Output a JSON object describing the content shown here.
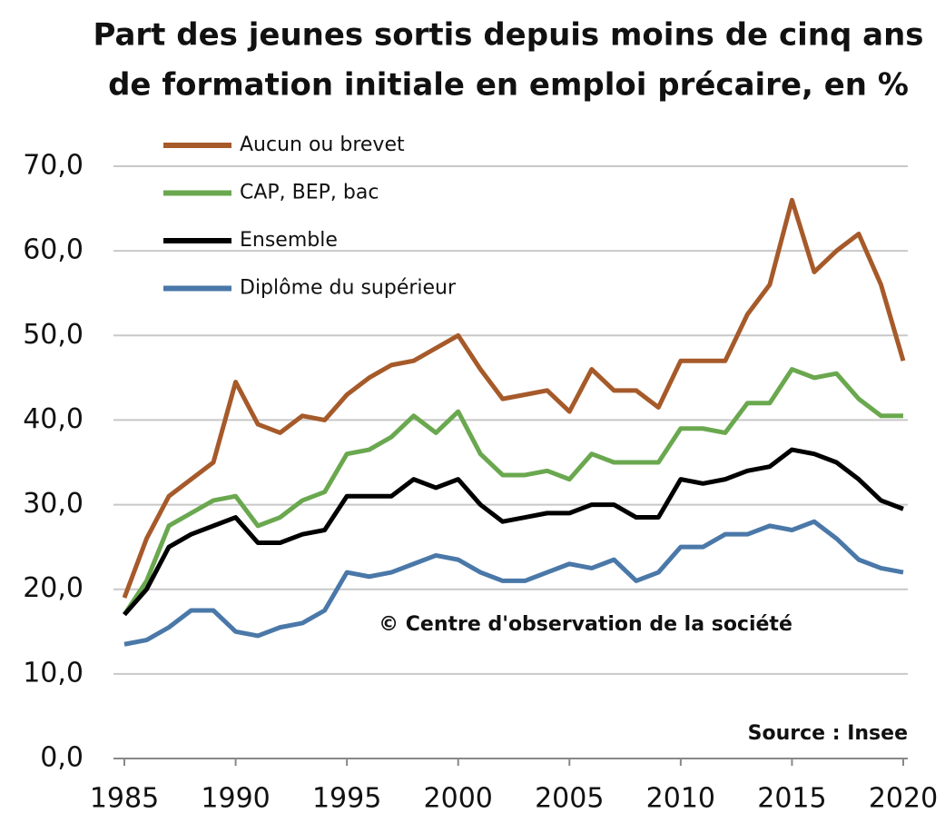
{
  "chart_data": {
    "type": "line",
    "title": [
      "Part des jeunes sortis depuis moins de cinq ans",
      "de formation initiale en emploi précaire, en %"
    ],
    "annotations": [
      "© Centre d'observation de la société",
      "Source : Insee"
    ],
    "x": [
      1985,
      1986,
      1987,
      1988,
      1989,
      1990,
      1991,
      1992,
      1993,
      1994,
      1995,
      1996,
      1997,
      1998,
      1999,
      2000,
      2001,
      2002,
      2003,
      2004,
      2005,
      2006,
      2007,
      2008,
      2009,
      2010,
      2011,
      2012,
      2013,
      2014,
      2015,
      2016,
      2017,
      2018,
      2019,
      2020
    ],
    "xlim": [
      1985,
      2020
    ],
    "xticks": [
      1985,
      1990,
      1995,
      2000,
      2005,
      2010,
      2015,
      2020
    ],
    "ylim": [
      0,
      70
    ],
    "yticks": [
      {
        "value": 0,
        "label": "0,0"
      },
      {
        "value": 10,
        "label": "10,0"
      },
      {
        "value": 20,
        "label": "20,0"
      },
      {
        "value": 30,
        "label": "30,0"
      },
      {
        "value": 40,
        "label": "40,0"
      },
      {
        "value": 50,
        "label": "50,0"
      },
      {
        "value": 60,
        "label": "60,0"
      },
      {
        "value": 70,
        "label": "70,0"
      }
    ],
    "grid": true,
    "legend": "top-left",
    "series": [
      {
        "name": "Aucun ou brevet",
        "color": "#a65a2a",
        "values": [
          19,
          26,
          31,
          33,
          35,
          44.5,
          39.5,
          38.5,
          40.5,
          40,
          43,
          45,
          46.5,
          47,
          48.5,
          50,
          46,
          42.5,
          43,
          43.5,
          41,
          46,
          43.5,
          43.5,
          41.5,
          47,
          47,
          47,
          52.5,
          56,
          66,
          57.5,
          60,
          62,
          56,
          47
        ]
      },
      {
        "name": "CAP, BEP, bac",
        "color": "#6aa84f",
        "values": [
          17,
          21,
          27.5,
          29,
          30.5,
          31,
          27.5,
          28.5,
          30.5,
          31.5,
          36,
          36.5,
          38,
          40.5,
          38.5,
          41,
          36,
          33.5,
          33.5,
          34,
          33,
          36,
          35,
          35,
          35,
          39,
          39,
          38.5,
          42,
          42,
          46,
          45,
          45.5,
          42.5,
          40.5,
          40.5
        ]
      },
      {
        "name": "Ensemble",
        "color": "#000000",
        "values": [
          17,
          20,
          25,
          26.5,
          27.5,
          28.5,
          25.5,
          25.5,
          26.5,
          27,
          31,
          31,
          31,
          33,
          32,
          33,
          30,
          28,
          28.5,
          29,
          29,
          30,
          30,
          28.5,
          28.5,
          33,
          32.5,
          33,
          34,
          34.5,
          36.5,
          36,
          35,
          33,
          30.5,
          29.5
        ]
      },
      {
        "name": "Diplôme du supérieur",
        "color": "#4a78a8",
        "values": [
          13.5,
          14,
          15.5,
          17.5,
          17.5,
          15,
          14.5,
          15.5,
          16,
          17.5,
          22,
          21.5,
          22,
          23,
          24,
          23.5,
          22,
          21,
          21,
          22,
          23,
          22.5,
          23.5,
          21,
          22,
          25,
          25,
          26.5,
          26.5,
          27.5,
          27,
          28,
          26,
          23.5,
          22.5,
          22
        ]
      }
    ]
  }
}
